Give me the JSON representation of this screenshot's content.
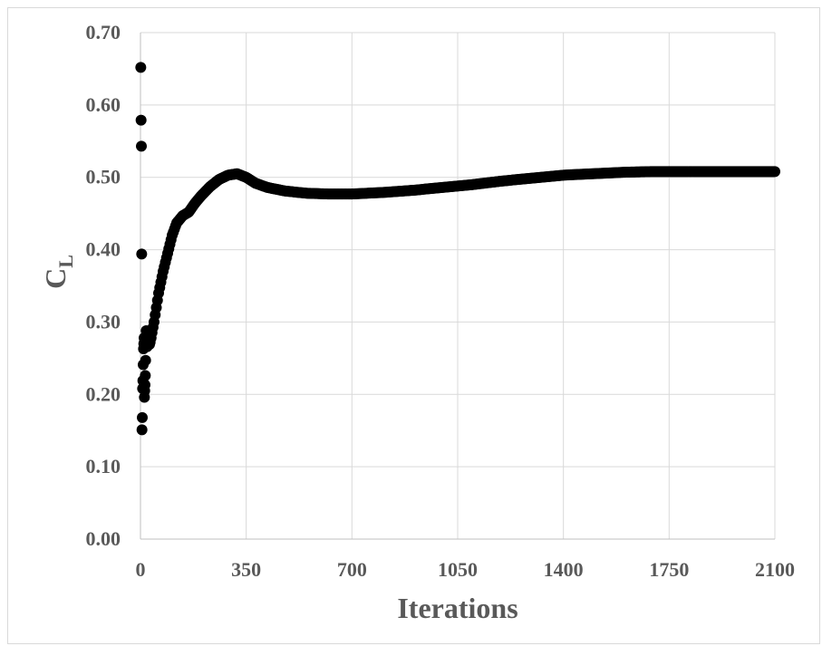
{
  "chart_data": {
    "type": "scatter",
    "title": "",
    "xlabel": "Iterations",
    "ylabel_main": "C",
    "ylabel_sub": "L",
    "xlim": [
      0,
      2100
    ],
    "ylim": [
      0,
      0.7
    ],
    "xticks": [
      "0",
      "350",
      "700",
      "1050",
      "1400",
      "1750",
      "2100"
    ],
    "yticks": [
      "0.00",
      "0.10",
      "0.20",
      "0.30",
      "0.40",
      "0.50",
      "0.60",
      "0.70"
    ],
    "grid": true,
    "legend": "none",
    "marker_color": "#000000",
    "series": [
      {
        "early_points": [
          [
            1,
            0.652
          ],
          [
            2,
            0.579
          ],
          [
            3,
            0.543
          ],
          [
            4,
            0.394
          ],
          [
            5,
            0.151
          ],
          [
            6,
            0.168
          ],
          [
            7,
            0.208
          ],
          [
            8,
            0.219
          ],
          [
            9,
            0.241
          ],
          [
            10,
            0.263
          ],
          [
            11,
            0.27
          ],
          [
            12,
            0.278
          ],
          [
            13,
            0.196
          ],
          [
            14,
            0.205
          ],
          [
            15,
            0.213
          ],
          [
            16,
            0.226
          ],
          [
            17,
            0.247
          ],
          [
            18,
            0.28
          ],
          [
            19,
            0.288
          ],
          [
            20,
            0.27
          ],
          [
            22,
            0.266
          ],
          [
            24,
            0.268
          ],
          [
            26,
            0.272
          ],
          [
            28,
            0.27
          ],
          [
            30,
            0.269
          ],
          [
            32,
            0.272
          ],
          [
            35,
            0.278
          ]
        ],
        "curve": [
          [
            35,
            0.278
          ],
          [
            45,
            0.3
          ],
          [
            60,
            0.34
          ],
          [
            75,
            0.37
          ],
          [
            90,
            0.395
          ],
          [
            105,
            0.42
          ],
          [
            120,
            0.437
          ],
          [
            140,
            0.447
          ],
          [
            160,
            0.452
          ],
          [
            180,
            0.464
          ],
          [
            200,
            0.474
          ],
          [
            230,
            0.487
          ],
          [
            260,
            0.497
          ],
          [
            290,
            0.503
          ],
          [
            320,
            0.505
          ],
          [
            350,
            0.5
          ],
          [
            380,
            0.492
          ],
          [
            420,
            0.486
          ],
          [
            480,
            0.481
          ],
          [
            550,
            0.478
          ],
          [
            620,
            0.477
          ],
          [
            700,
            0.477
          ],
          [
            800,
            0.479
          ],
          [
            900,
            0.482
          ],
          [
            1000,
            0.486
          ],
          [
            1100,
            0.49
          ],
          [
            1200,
            0.495
          ],
          [
            1300,
            0.499
          ],
          [
            1400,
            0.503
          ],
          [
            1500,
            0.505
          ],
          [
            1600,
            0.507
          ],
          [
            1700,
            0.508
          ],
          [
            1800,
            0.508
          ],
          [
            1900,
            0.508
          ],
          [
            2000,
            0.508
          ],
          [
            2100,
            0.508
          ]
        ]
      }
    ]
  }
}
